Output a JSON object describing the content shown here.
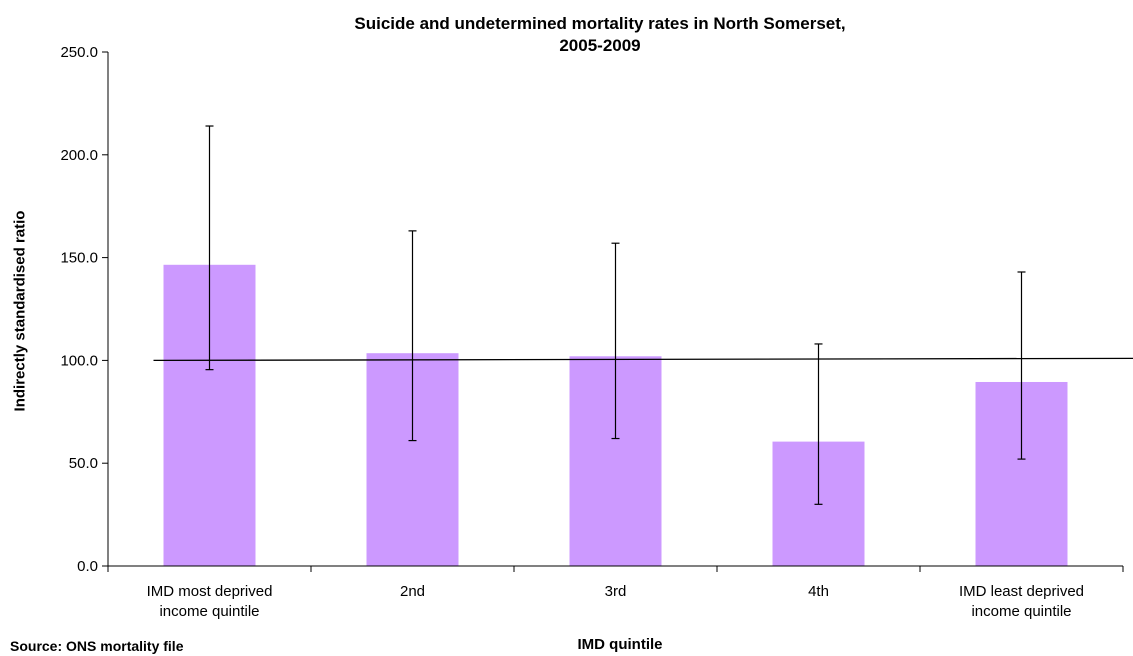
{
  "chart_data": {
    "type": "bar",
    "title_line1": "Suicide and undetermined mortality rates in North Somerset,",
    "title_line2": "2005-2009",
    "xlabel": "IMD quintile",
    "ylabel": "Indirectly standardised ratio",
    "source": "Source:  ONS mortality file",
    "categories": [
      [
        "IMD most deprived",
        "income quintile"
      ],
      [
        "2nd"
      ],
      [
        "3rd"
      ],
      [
        "4th"
      ],
      [
        "IMD least deprived",
        "income quintile"
      ]
    ],
    "values": [
      146.5,
      103.5,
      102.0,
      60.5,
      89.5
    ],
    "ci_lower": [
      95.5,
      61.0,
      62.0,
      30.0,
      52.0
    ],
    "ci_upper": [
      214.0,
      163.0,
      157.0,
      108.0,
      143.0
    ],
    "reference_line": {
      "start": 100.0,
      "end": 101.0
    },
    "ylim": [
      0,
      250
    ],
    "yticks": [
      "0.0",
      "50.0",
      "100.0",
      "150.0",
      "200.0",
      "250.0"
    ],
    "bar_color": "#cc99ff",
    "grid": false
  }
}
